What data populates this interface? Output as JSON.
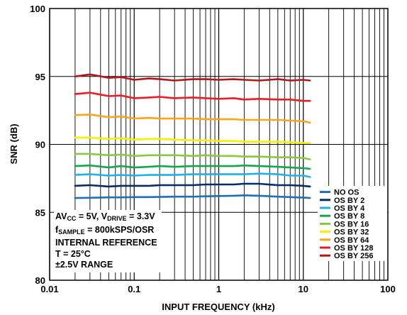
{
  "chart_data": {
    "type": "line",
    "xlabel": "INPUT FREQUENCY (kHz)",
    "ylabel": "SNR (dB)",
    "xscale": "log",
    "xlim": [
      0.01,
      100
    ],
    "ylim": [
      80,
      100
    ],
    "x_ticks": [
      "0.01",
      "0.1",
      "1",
      "10",
      "100"
    ],
    "y_ticks": [
      "80",
      "85",
      "90",
      "95",
      "100"
    ],
    "grid": true,
    "legend_position": "bottom-right",
    "x": [
      0.02,
      0.03,
      0.05,
      0.07,
      0.1,
      0.15,
      0.2,
      0.3,
      0.5,
      0.7,
      1,
      1.5,
      2,
      3,
      5,
      7,
      10,
      12
    ],
    "series": [
      {
        "name": "NO OS",
        "color": "#1F6FB5",
        "values": [
          86.05,
          86.07,
          86.1,
          86.1,
          86.12,
          86.12,
          86.13,
          86.15,
          86.15,
          86.18,
          86.2,
          86.22,
          86.25,
          86.22,
          86.15,
          86.12,
          86.08,
          86.05
        ]
      },
      {
        "name": "OS BY 2",
        "color": "#002C6C",
        "values": [
          86.95,
          87.0,
          86.9,
          86.95,
          86.95,
          86.95,
          87.0,
          87.0,
          87.0,
          87.05,
          87.05,
          87.05,
          87.1,
          87.1,
          87.0,
          87.0,
          86.95,
          86.9
        ]
      },
      {
        "name": "OS BY 4",
        "color": "#1BB4E8",
        "values": [
          87.75,
          87.8,
          87.7,
          87.75,
          87.7,
          87.75,
          87.75,
          87.75,
          87.8,
          87.8,
          87.8,
          87.8,
          87.8,
          87.85,
          87.8,
          87.7,
          87.7,
          87.6
        ]
      },
      {
        "name": "OS BY 8",
        "color": "#0FA84E",
        "values": [
          88.4,
          88.45,
          88.3,
          88.4,
          88.3,
          88.35,
          88.4,
          88.35,
          88.4,
          88.4,
          88.4,
          88.4,
          88.45,
          88.4,
          88.35,
          88.3,
          88.25,
          88.2
        ]
      },
      {
        "name": "OS BY 16",
        "color": "#8DC63F",
        "values": [
          89.3,
          89.3,
          89.2,
          89.25,
          89.15,
          89.2,
          89.2,
          89.2,
          89.15,
          89.2,
          89.15,
          89.15,
          89.1,
          89.1,
          89.05,
          89.05,
          89.0,
          88.9
        ]
      },
      {
        "name": "OS BY 32",
        "color": "#FFEE00",
        "values": [
          90.5,
          90.5,
          90.4,
          90.45,
          90.35,
          90.4,
          90.4,
          90.35,
          90.3,
          90.3,
          90.25,
          90.25,
          90.2,
          90.2,
          90.2,
          90.15,
          90.1,
          90.1
        ]
      },
      {
        "name": "OS BY 64",
        "color": "#F9A51A",
        "values": [
          92.15,
          92.2,
          92.0,
          92.05,
          91.9,
          91.95,
          91.9,
          91.9,
          91.9,
          91.85,
          91.85,
          91.85,
          91.8,
          91.8,
          91.8,
          91.75,
          91.7,
          91.6
        ]
      },
      {
        "name": "OS BY 128",
        "color": "#ED1C24",
        "values": [
          93.7,
          93.8,
          93.55,
          93.6,
          93.4,
          93.45,
          93.5,
          93.4,
          93.45,
          93.4,
          93.35,
          93.4,
          93.3,
          93.35,
          93.3,
          93.3,
          93.2,
          93.2
        ]
      },
      {
        "name": "OS BY 256",
        "color": "#B2171D",
        "values": [
          95.0,
          95.15,
          94.9,
          94.95,
          94.75,
          94.85,
          94.8,
          94.7,
          94.8,
          94.8,
          94.75,
          94.8,
          94.75,
          94.7,
          94.8,
          94.7,
          94.75,
          94.7
        ]
      }
    ],
    "annotations": {
      "line1_main": "AV",
      "line1_sub1": "CC",
      "line1_mid": " = 5V, V",
      "line1_sub2": "DRIVE",
      "line1_end": " = 3.3V",
      "line2_main": "f",
      "line2_sub": "SAMPLE",
      "line2_end": " = 800kSPS/OSR",
      "line3": "INTERNAL REFERENCE",
      "line4": "T = 25°C",
      "line5": "±2.5V RANGE"
    }
  }
}
